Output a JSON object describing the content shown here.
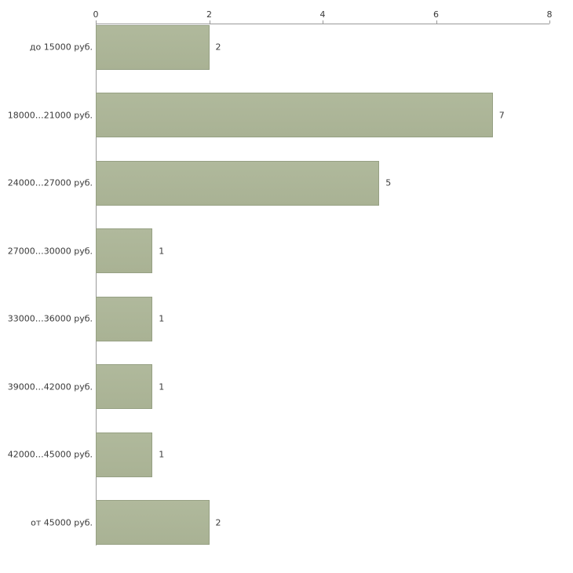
{
  "chart_data": {
    "type": "bar",
    "orientation": "horizontal",
    "title": "",
    "xlabel": "",
    "ylabel": "",
    "categories": [
      "до 15000 руб.",
      "18000…21000 руб.",
      "24000…27000 руб.",
      "27000…30000 руб.",
      "33000…36000 руб.",
      "39000…42000 руб.",
      "42000…45000 руб.",
      "от 45000 руб."
    ],
    "values": [
      2,
      7,
      5,
      1,
      1,
      1,
      1,
      2
    ],
    "value_labels": [
      "2",
      "7",
      "5",
      "1",
      "1",
      "1",
      "1",
      "2"
    ],
    "x_ticks": [
      "0",
      "2",
      "4",
      "6",
      "8"
    ],
    "xlim": [
      0,
      8
    ],
    "grid": false,
    "legend_position": "none",
    "axis_position": "top",
    "colors": {
      "bar_fill": "#a9b294",
      "bar_fill_light": "#b0b99c",
      "bar_border": "#96a083",
      "axis": "#999999",
      "text": "#3a3a3a",
      "background": "#ffffff"
    }
  }
}
